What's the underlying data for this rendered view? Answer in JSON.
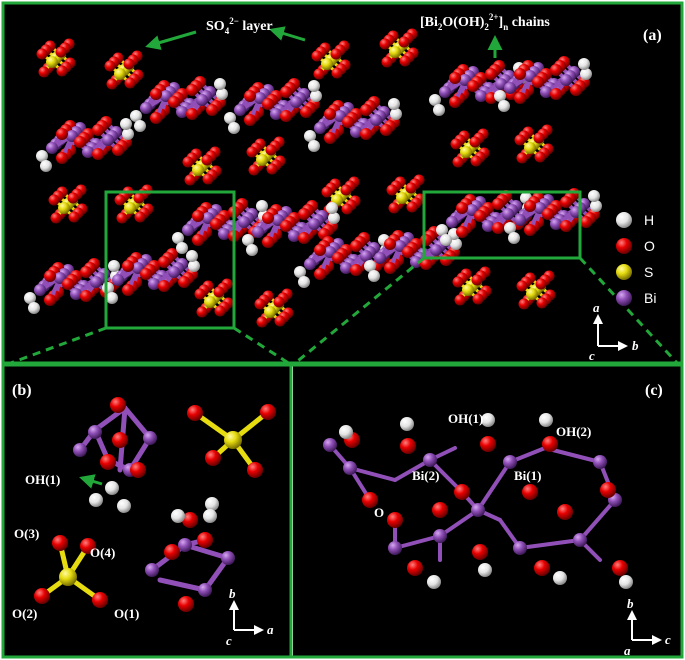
{
  "panels": {
    "a": {
      "tag": "(a)"
    },
    "b": {
      "tag": "(b)"
    },
    "c": {
      "tag": "(c)"
    }
  },
  "annotations": {
    "so4_layer": {
      "base": "SO",
      "sub": "4",
      "sup": "2−",
      "rest": " layer"
    },
    "chains": {
      "pre": "[Bi",
      "sub1": "2",
      "mid": "O(OH)",
      "sub2": "2",
      "sup": "2+",
      "post": "]",
      "subn": "n",
      "rest": " chains"
    }
  },
  "legend": [
    {
      "symbol": "H",
      "color": "#e9e9e9"
    },
    {
      "symbol": "O",
      "color": "#e80000"
    },
    {
      "symbol": "S",
      "color": "#e6dc10"
    },
    {
      "symbol": "Bi",
      "color": "#9050b8"
    }
  ],
  "axes": {
    "a": {
      "up": "a",
      "right": "b",
      "center": "c"
    },
    "b": {
      "up": "b",
      "right": "a",
      "center": "c"
    },
    "c": {
      "up": "b",
      "right": "c",
      "center": "a"
    }
  },
  "panel_b_labels": {
    "oh1": "OH(1)",
    "o3": "O(3)",
    "o4": "O(4)",
    "o2": "O(2)",
    "o1": "O(1)"
  },
  "panel_c_labels": {
    "oh1": "OH(1)",
    "oh2": "OH(2)",
    "bi2": "Bi(2)",
    "bi1": "Bi(1)",
    "o": "O"
  },
  "colors": {
    "frame": "#22a83a",
    "background": "#000000",
    "bond": "#9050b8"
  }
}
